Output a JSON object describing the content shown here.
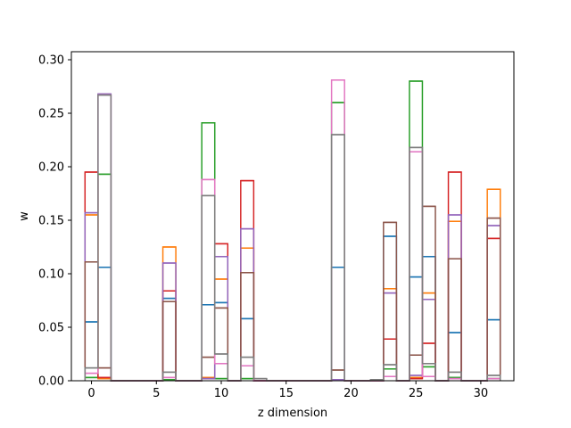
{
  "chart_data": {
    "type": "bar",
    "style": "step histogram outlines, overlapping series",
    "title": "",
    "xlabel": "z dimension",
    "ylabel": "w",
    "xlim": [
      -1.55,
      32.55
    ],
    "ylim": [
      0,
      0.3075
    ],
    "xticks": [
      0,
      5,
      10,
      15,
      20,
      25,
      30
    ],
    "yticks": [
      0.0,
      0.05,
      0.1,
      0.15,
      0.2,
      0.25,
      0.3
    ],
    "xtick_labels": [
      "0",
      "5",
      "10",
      "15",
      "20",
      "25",
      "30"
    ],
    "ytick_labels": [
      "0.00",
      "0.05",
      "0.10",
      "0.15",
      "0.20",
      "0.25",
      "0.30"
    ],
    "bins": [
      0,
      1,
      2,
      3,
      4,
      5,
      6,
      7,
      8,
      9,
      10,
      11,
      12,
      13,
      14,
      15,
      16,
      17,
      18,
      19,
      20,
      21,
      22,
      23,
      24,
      25,
      26,
      27,
      28,
      29,
      30,
      31
    ],
    "grid": false,
    "series": [
      {
        "color": "#1f77b4",
        "values": [
          0.055,
          0.106,
          0,
          0,
          0,
          0,
          0.077,
          0,
          0,
          0.071,
          0.073,
          0,
          0.058,
          0,
          0,
          0,
          0,
          0,
          0,
          0.106,
          0,
          0,
          0,
          0.135,
          0,
          0.097,
          0.116,
          0,
          0.045,
          0,
          0,
          0.057
        ]
      },
      {
        "color": "#ff7f0e",
        "values": [
          0.155,
          0.002,
          0,
          0,
          0,
          0,
          0.125,
          0,
          0,
          0.003,
          0.095,
          0,
          0.124,
          0,
          0,
          0,
          0,
          0,
          0,
          0.001,
          0,
          0,
          0,
          0.086,
          0,
          0.003,
          0.082,
          0,
          0.149,
          0,
          0,
          0.179
        ]
      },
      {
        "color": "#2ca02c",
        "values": [
          0.003,
          0.193,
          0,
          0,
          0,
          0,
          0.001,
          0,
          0,
          0.241,
          0.002,
          0,
          0.002,
          0,
          0,
          0,
          0,
          0,
          0,
          0.26,
          0,
          0,
          0,
          0.011,
          0,
          0.28,
          0.013,
          0,
          0.003,
          0,
          0,
          0.002
        ]
      },
      {
        "color": "#d62728",
        "values": [
          0.195,
          0.003,
          0,
          0,
          0,
          0,
          0.084,
          0,
          0,
          0.002,
          0.128,
          0,
          0.187,
          0,
          0,
          0,
          0,
          0,
          0,
          0.001,
          0,
          0,
          0,
          0.039,
          0,
          0.002,
          0.035,
          0,
          0.195,
          0,
          0,
          0.133
        ]
      },
      {
        "color": "#9467bd",
        "values": [
          0.157,
          0.268,
          0,
          0,
          0,
          0,
          0.11,
          0,
          0,
          0.002,
          0.116,
          0,
          0.142,
          0,
          0,
          0,
          0,
          0,
          0,
          0.001,
          0,
          0,
          0,
          0.082,
          0,
          0.005,
          0.076,
          0,
          0.155,
          0,
          0,
          0.145
        ]
      },
      {
        "color": "#8c564b",
        "values": [
          0.111,
          0.012,
          0,
          0,
          0,
          0,
          0.074,
          0,
          0,
          0.022,
          0.068,
          0,
          0.101,
          0,
          0,
          0,
          0,
          0,
          0,
          0.01,
          0,
          0,
          0,
          0.148,
          0,
          0.024,
          0.163,
          0,
          0.114,
          0,
          0,
          0.152
        ]
      },
      {
        "color": "#e377c2",
        "values": [
          0.007,
          0.267,
          0,
          0,
          0,
          0,
          0.003,
          0,
          0,
          0.188,
          0.016,
          0,
          0.014,
          0,
          0,
          0,
          0,
          0,
          0,
          0.281,
          0,
          0,
          0,
          0.004,
          0,
          0.214,
          0.004,
          0,
          0.002,
          0,
          0,
          0.002
        ]
      },
      {
        "color": "#7f7f7f",
        "values": [
          0.012,
          0.267,
          0,
          0,
          0,
          0,
          0.008,
          0,
          0,
          0.173,
          0.025,
          0,
          0.022,
          0.002,
          0,
          0,
          0,
          0,
          0,
          0.23,
          0,
          0,
          0.001,
          0.015,
          0,
          0.218,
          0.016,
          0,
          0.008,
          0,
          0,
          0.005
        ]
      }
    ]
  }
}
